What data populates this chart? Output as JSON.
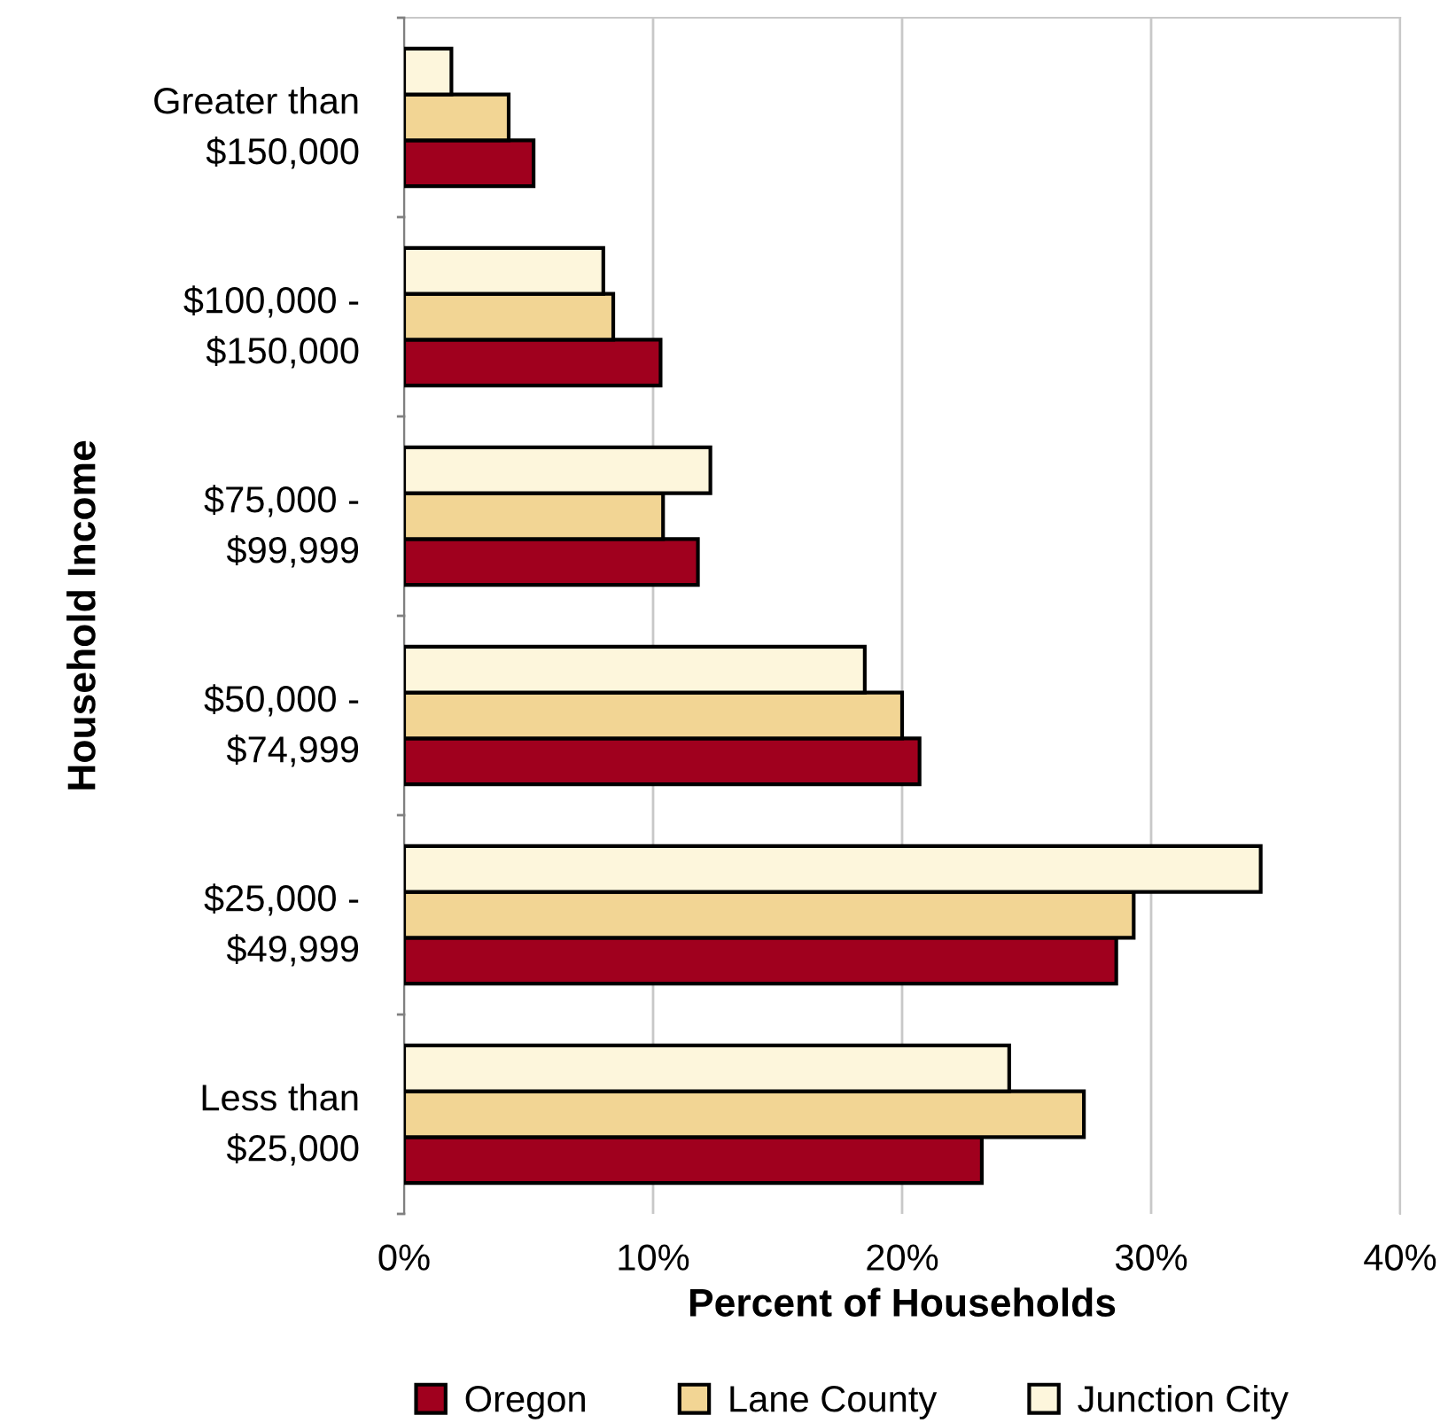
{
  "chart_data": {
    "type": "bar",
    "orientation": "horizontal",
    "xlabel": "Percent of Households",
    "ylabel": "Household Income",
    "categories": [
      "Greater than\n$150,000",
      "$100,000 -\n$150,000",
      "$75,000 -\n$99,999",
      "$50,000 -\n$74,999",
      "$25,000 -\n$49,999",
      "Less than\n$25,000"
    ],
    "series": [
      {
        "name": "Oregon",
        "color": "#a0001e",
        "values": [
          5.2,
          10.3,
          11.8,
          20.7,
          28.6,
          23.2
        ]
      },
      {
        "name": "Lane County",
        "color": "#f2d594",
        "values": [
          4.2,
          8.4,
          10.4,
          20.0,
          29.3,
          27.3
        ]
      },
      {
        "name": "Junction City",
        "color": "#fdf6dc",
        "values": [
          1.9,
          8.0,
          12.3,
          18.5,
          34.4,
          24.3
        ]
      }
    ],
    "xlim": [
      0,
      40
    ],
    "xticks": [
      {
        "value": 0,
        "label": "0%"
      },
      {
        "value": 10,
        "label": "10%"
      },
      {
        "value": 20,
        "label": "20%"
      },
      {
        "value": 30,
        "label": "30%"
      },
      {
        "value": 40,
        "label": "40%"
      }
    ],
    "grid": "x",
    "legend": "bottom"
  }
}
